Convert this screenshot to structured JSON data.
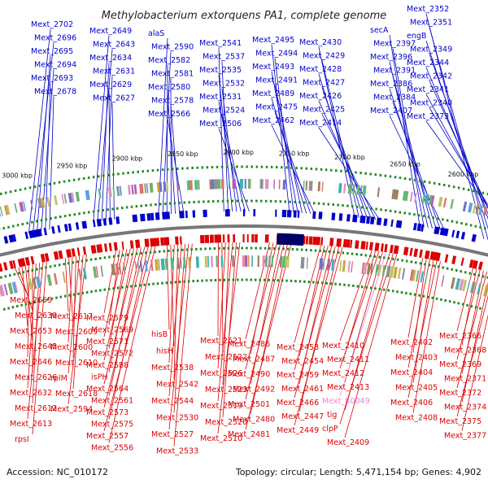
{
  "title": "Methylobacterium extorquens PA1, complete genome",
  "accession": "Accession: NC_010172",
  "summary": "Topology: circular; Length: 5,471,154 bp; Genes: 4,902",
  "colors": {
    "forward": "#0000cc",
    "reverse": "#dd0000",
    "rna": "#ee88cc",
    "backbone": "#777777",
    "tick": "#228822"
  },
  "ticks": [
    "3000 kbp",
    "2950 kbp",
    "2900 kbp",
    "2850 kbp",
    "2800 kbp",
    "2750 kbp",
    "2700 kbp",
    "2650 kbp",
    "2600 kbp"
  ],
  "top_genes": [
    "Mext_2702",
    "Mext_2696",
    "Mext_2695",
    "Mext_2694",
    "Mext_2693",
    "Mext_2678",
    "Mext_2649",
    "Mext_2643",
    "Mext_2634",
    "Mext_2631",
    "Mext_2629",
    "Mext_2627",
    "alaS",
    "Mext_2590",
    "Mext_2582",
    "Mext_2581",
    "Mext_2580",
    "Mext_2578",
    "Mext_2566",
    "Mext_2541",
    "Mext_2537",
    "Mext_2535",
    "Mext_2532",
    "Mext_2531",
    "Mext_2524",
    "Mext_2506",
    "Mext_2495",
    "Mext_2494",
    "Mext_2493",
    "Mext_2491",
    "Mext_2489",
    "Mext_2475",
    "Mext_2462",
    "Mext_2430",
    "Mext_2429",
    "Mext_2428",
    "Mext_2427",
    "Mext_2426",
    "Mext_2425",
    "Mext_2414",
    "secA",
    "Mext_2397",
    "Mext_2396",
    "Mext_2391",
    "Mext_2386",
    "Mext_2384",
    "Mext_2407",
    "Mext_2352",
    "Mext_2351",
    "engB",
    "Mext_2349",
    "Mext_2344",
    "Mext_2342",
    "Mext_2341",
    "Mext_2340",
    "Mext_2373"
  ],
  "bottom_genes": [
    "Mext_2655",
    "Mext_2639",
    "Mext_2653",
    "Mext_2645",
    "Mext_2646",
    "Mext_2626",
    "Mext_2632",
    "Mext_2612",
    "Mext_2613",
    "rpsI",
    "Mext_2617",
    "Mext_2609",
    "Mext_2600",
    "Mext_2610",
    "rplM",
    "Mext_2618",
    "Mext_2594",
    "Mext_2579",
    "Mext_2569",
    "Mext_2571",
    "Mext_2572",
    "Mext_2588",
    "isPH",
    "Mext_2564",
    "Mext_2561",
    "Mext_2573",
    "Mext_2575",
    "Mext_2557",
    "Mext_2556",
    "hisB",
    "hisH",
    "Mext_2538",
    "Mext_2542",
    "Mext_2544",
    "Mext_2530",
    "Mext_2527",
    "Mext_2533",
    "Mext_2521",
    "Mext_2522",
    "Mext_2526",
    "Mext_2523",
    "Mext_2519",
    "Mext_2520",
    "Mext_2510",
    "Mext_2486",
    "Mext_2487",
    "Mext_2490",
    "Mext_2492",
    "Mext_2501",
    "Mext_2480",
    "Mext_2481",
    "Mext_2453",
    "Mext_2454",
    "Mext_2459",
    "Mext_2461",
    "Mext_2466",
    "Mext_2447",
    "Mext_2449",
    "Mext_2410",
    "Mext_2411",
    "Mext_2412",
    "Mext_2413",
    "Mext_R0049",
    "tig",
    "clpP",
    "Mext_2409",
    "Mext_2402",
    "Mext_2403",
    "Mext_2404",
    "Mext_2405",
    "Mext_2406",
    "Mext_2408",
    "Mext_2366",
    "Mext_2368",
    "Mext_2369",
    "Mext_2371",
    "Mext_2372",
    "Mext_2374",
    "Mext_2375",
    "Mext_2377"
  ]
}
